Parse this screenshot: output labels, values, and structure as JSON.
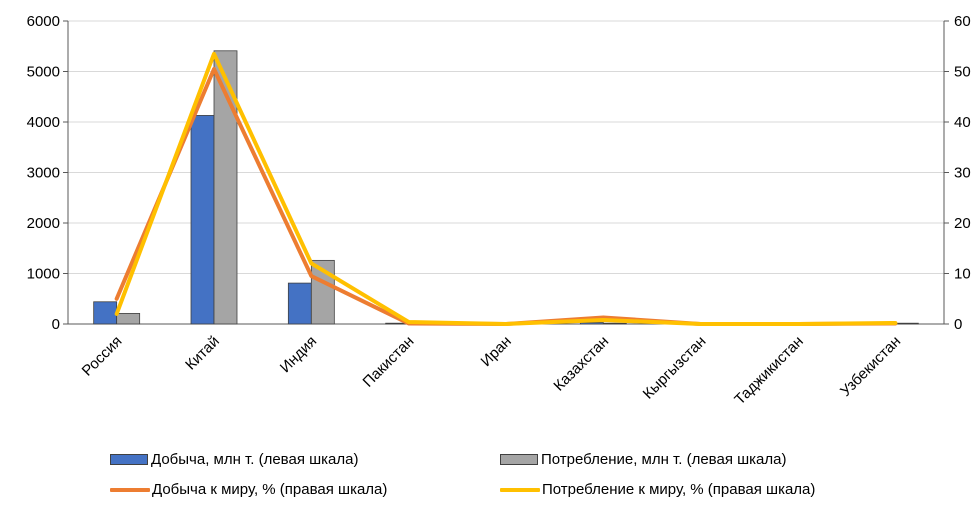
{
  "chart_data": {
    "type": "bar+line",
    "categories": [
      "Россия",
      "Китай",
      "Индия",
      "Пакистан",
      "Иран",
      "Казахстан",
      "Кыргызстан",
      "Таджикистан",
      "Узбекистан"
    ],
    "series": [
      {
        "name": "Добыча, млн т. (левая шкала)",
        "type": "bar",
        "axis": "left",
        "color": "#4472C4",
        "values": [
          440,
          4130,
          810,
          5,
          2,
          30,
          2,
          2,
          4
        ]
      },
      {
        "name": "Потребление, млн т. (левая шкала)",
        "type": "bar",
        "axis": "left",
        "color": "#A5A5A5",
        "values": [
          210,
          5410,
          1260,
          20,
          3,
          10,
          2,
          2,
          6
        ]
      },
      {
        "name": "Добыча к миру, % (правая шкала)",
        "type": "line",
        "axis": "right",
        "color": "#ED7D31",
        "values": [
          5.0,
          50.5,
          9.5,
          0.1,
          0.0,
          1.3,
          0.0,
          0.0,
          0.1
        ]
      },
      {
        "name": "Потребление к миру, % (правая шкала)",
        "type": "line",
        "axis": "right",
        "color": "#FFC000",
        "values": [
          2.0,
          53.5,
          12.0,
          0.4,
          0.0,
          0.8,
          0.0,
          0.0,
          0.2
        ]
      }
    ],
    "y_left": {
      "min": 0,
      "max": 6000,
      "ticks": [
        "0",
        "1000",
        "2000",
        "3000",
        "4000",
        "5000",
        "6000"
      ]
    },
    "y_right": {
      "min": 0,
      "max": 60,
      "ticks": [
        "0",
        "10",
        "20",
        "30",
        "40",
        "50",
        "60"
      ]
    },
    "grid": true,
    "legend_position": "bottom"
  }
}
